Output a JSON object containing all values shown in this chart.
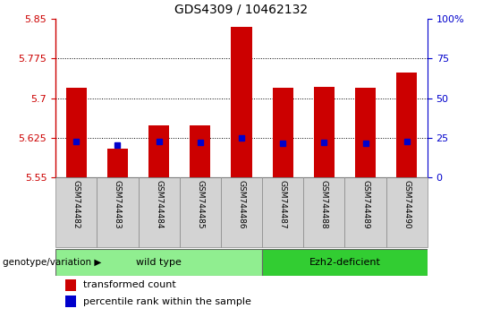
{
  "title": "GDS4309 / 10462132",
  "samples": [
    "GSM744482",
    "GSM744483",
    "GSM744484",
    "GSM744485",
    "GSM744486",
    "GSM744487",
    "GSM744488",
    "GSM744489",
    "GSM744490"
  ],
  "red_values": [
    5.72,
    5.605,
    5.648,
    5.648,
    5.835,
    5.72,
    5.722,
    5.72,
    5.748
  ],
  "blue_values": [
    5.618,
    5.612,
    5.618,
    5.616,
    5.625,
    5.614,
    5.616,
    5.615,
    5.618
  ],
  "ylim_left": [
    5.55,
    5.85
  ],
  "ylim_right": [
    0,
    100
  ],
  "yticks_left": [
    5.55,
    5.625,
    5.7,
    5.775,
    5.85
  ],
  "yticks_right": [
    0,
    25,
    50,
    75,
    100
  ],
  "bar_color": "#cc0000",
  "dot_color": "#0000cc",
  "bar_width": 0.5,
  "group_spans": [
    {
      "start": 0,
      "end": 4,
      "label": "wild type",
      "color": "#90ee90"
    },
    {
      "start": 5,
      "end": 8,
      "label": "Ezh2-deficient",
      "color": "#32cd32"
    }
  ],
  "legend_items": [
    {
      "label": "transformed count",
      "color": "#cc0000"
    },
    {
      "label": "percentile rank within the sample",
      "color": "#0000cc"
    }
  ],
  "title_fontsize": 10,
  "tick_fontsize": 8,
  "sample_fontsize": 6.5,
  "geno_fontsize": 8,
  "legend_fontsize": 8,
  "geno_label": "genotype/variation ▶",
  "label_color_left": "#cc0000",
  "label_color_right": "#0000cc",
  "spine_color_left": "#cc0000",
  "spine_color_right": "#0000cc"
}
